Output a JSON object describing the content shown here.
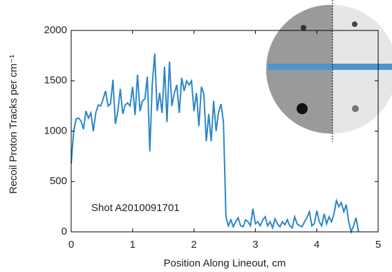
{
  "chart_data": {
    "type": "line",
    "x_label": "Position Along Lineout, cm",
    "y_label": "Recoil Proton Tracks per cm⁻¹",
    "annotation": "Shot A2010091701",
    "xlim": [
      0,
      5
    ],
    "xticks": [
      0,
      1,
      2,
      3,
      4,
      5
    ],
    "ylim": [
      0,
      2000
    ],
    "yticks": [
      0,
      500,
      1000,
      1500,
      2000
    ],
    "series": [
      {
        "color": "#2a86c8",
        "x": [
          0,
          0.04,
          0.08,
          0.12,
          0.16,
          0.2,
          0.24,
          0.28,
          0.32,
          0.36,
          0.4,
          0.44,
          0.48,
          0.52,
          0.56,
          0.6,
          0.64,
          0.68,
          0.72,
          0.76,
          0.8,
          0.84,
          0.88,
          0.92,
          0.96,
          1.0,
          1.04,
          1.08,
          1.12,
          1.16,
          1.2,
          1.24,
          1.28,
          1.32,
          1.36,
          1.4,
          1.44,
          1.48,
          1.52,
          1.56,
          1.6,
          1.64,
          1.68,
          1.72,
          1.76,
          1.8,
          1.84,
          1.88,
          1.92,
          1.96,
          2.0,
          2.04,
          2.08,
          2.12,
          2.16,
          2.2,
          2.24,
          2.28,
          2.32,
          2.36,
          2.4,
          2.44,
          2.48,
          2.52,
          2.56,
          2.6,
          2.64,
          2.68,
          2.72,
          2.76,
          2.8,
          2.84,
          2.88,
          2.92,
          2.96,
          3.0,
          3.04,
          3.08,
          3.12,
          3.16,
          3.2,
          3.24,
          3.28,
          3.32,
          3.36,
          3.4,
          3.44,
          3.48,
          3.52,
          3.56,
          3.6,
          3.64,
          3.68,
          3.72,
          3.76,
          3.8,
          3.84,
          3.88,
          3.92,
          3.96,
          4.0,
          4.04,
          4.08,
          4.12,
          4.16,
          4.2,
          4.24,
          4.28,
          4.32,
          4.36,
          4.4,
          4.44,
          4.48,
          4.52,
          4.56,
          4.6,
          4.64,
          4.68
        ],
        "values": [
          680,
          1000,
          1120,
          1130,
          1100,
          1020,
          1200,
          1130,
          1180,
          1000,
          1180,
          1260,
          1250,
          1320,
          1400,
          1250,
          1270,
          1510,
          1070,
          1200,
          1420,
          1170,
          1260,
          1280,
          1250,
          1440,
          1160,
          1560,
          1200,
          1300,
          1320,
          1540,
          800,
          1460,
          1770,
          1200,
          1380,
          1180,
          1640,
          1090,
          1690,
          1250,
          1380,
          1460,
          1180,
          1530,
          1400,
          1500,
          1460,
          1500,
          1200,
          1380,
          1050,
          1440,
          1370,
          900,
          1170,
          900,
          1300,
          1000,
          1190,
          1270,
          1090,
          150,
          60,
          120,
          50,
          100,
          140,
          60,
          50,
          120,
          100,
          60,
          230,
          80,
          100,
          60,
          120,
          150,
          60,
          100,
          40,
          130,
          80,
          50,
          100,
          70,
          120,
          60,
          40,
          150,
          80,
          60,
          50,
          100,
          140,
          200,
          60,
          80,
          210,
          100,
          60,
          180,
          80,
          150,
          100,
          180,
          310,
          250,
          290,
          200,
          270,
          100,
          0,
          60,
          140,
          0
        ]
      }
    ]
  }
}
